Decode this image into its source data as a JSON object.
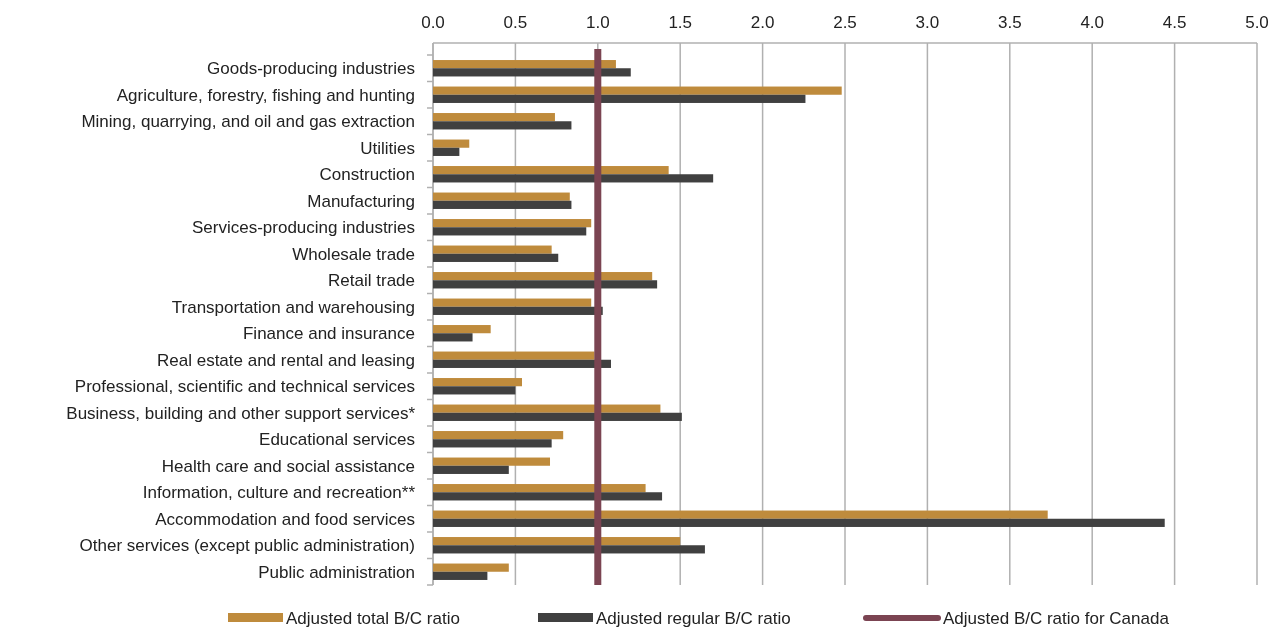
{
  "chart_data": {
    "type": "bar",
    "orientation": "horizontal",
    "categories": [
      "Goods-producing industries",
      "Agriculture, forestry, fishing and hunting",
      "Mining, quarrying, and oil and gas extraction",
      "Utilities",
      "Construction",
      "Manufacturing",
      "Services-producing industries",
      "Wholesale trade",
      "Retail trade",
      "Transportation and warehousing",
      "Finance and insurance",
      "Real estate and rental and leasing",
      "Professional, scientific and technical services",
      "Business, building and other support services*",
      "Educational services",
      "Health care and social assistance",
      "Information, culture and recreation**",
      "Accommodation and food services",
      "Other services (except public administration)",
      "Public administration"
    ],
    "series": [
      {
        "name": "Adjusted total B/C ratio",
        "color": "#bf8b3c",
        "values": [
          1.11,
          2.48,
          0.74,
          0.22,
          1.43,
          0.83,
          0.96,
          0.72,
          1.33,
          0.96,
          0.35,
          0.98,
          0.54,
          1.38,
          0.79,
          0.71,
          1.29,
          3.73,
          1.5,
          0.46
        ]
      },
      {
        "name": "Adjusted regular B/C ratio",
        "color": "#404040",
        "values": [
          1.2,
          2.26,
          0.84,
          0.16,
          1.7,
          0.84,
          0.93,
          0.76,
          1.36,
          1.03,
          0.24,
          1.08,
          0.5,
          1.51,
          0.72,
          0.46,
          1.39,
          4.44,
          1.65,
          0.33
        ]
      }
    ],
    "xlim": [
      0,
      5
    ],
    "xticks": [
      {
        "value": 0,
        "label": "0.0"
      },
      {
        "value": 0.5,
        "label": "0.5"
      },
      {
        "value": 1,
        "label": "1.0"
      },
      {
        "value": 1.5,
        "label": "1.5"
      },
      {
        "value": 2,
        "label": "2.0"
      },
      {
        "value": 2.5,
        "label": "2.5"
      },
      {
        "value": 3,
        "label": "3.0"
      },
      {
        "value": 3.5,
        "label": "3.5"
      },
      {
        "value": 4,
        "label": "4.0"
      },
      {
        "value": 4.5,
        "label": "4.5"
      },
      {
        "value": 5,
        "label": "5.0"
      }
    ],
    "ref_lines": [
      {
        "axis": "x",
        "value": 1,
        "label": "Adjusted B/C ratio for Canada",
        "color": "#7b4452"
      }
    ],
    "grid": "x",
    "legend": "bottom"
  }
}
